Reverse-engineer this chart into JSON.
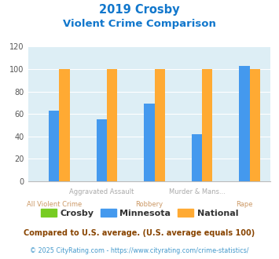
{
  "title_line1": "2019 Crosby",
  "title_line2": "Violent Crime Comparison",
  "groups": [
    "All Violent Crime",
    "Aggravated Assault",
    "Robbery",
    "Murder & Mans...",
    "Rape"
  ],
  "top_labels": [
    "",
    "Aggravated Assault",
    "",
    "Murder & Mans...",
    ""
  ],
  "bot_labels": [
    "All Violent Crime",
    "",
    "Robbery",
    "",
    "Rape"
  ],
  "crosby": [
    0,
    0,
    0,
    0,
    0
  ],
  "minnesota": [
    63,
    55,
    69,
    42,
    103
  ],
  "national": [
    100,
    100,
    100,
    100,
    100
  ],
  "series_labels": [
    "Crosby",
    "Minnesota",
    "National"
  ],
  "colors": [
    "#77cc22",
    "#4499ee",
    "#ffaa33"
  ],
  "ylim": [
    0,
    120
  ],
  "yticks": [
    0,
    20,
    40,
    60,
    80,
    100,
    120
  ],
  "background_color": "#ddeef5",
  "title_color": "#1177cc",
  "grid_color": "#ffffff",
  "top_label_color": "#aaaaaa",
  "bot_label_color": "#cc9966",
  "legend_label_color": "#333333",
  "footer_text": "Compared to U.S. average. (U.S. average equals 100)",
  "credit_text": "© 2025 CityRating.com - https://www.cityrating.com/crime-statistics/",
  "footer_color": "#884400",
  "credit_color": "#4499cc"
}
